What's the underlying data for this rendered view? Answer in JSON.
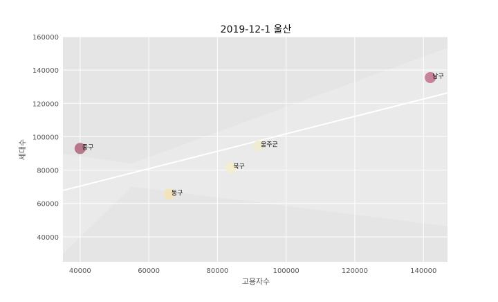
{
  "chart_data": {
    "type": "scatter",
    "title": "2019-12-1 울산",
    "xlabel": "고용자수",
    "ylabel": "세대수",
    "xlim": [
      35000,
      147000
    ],
    "ylim": [
      25000,
      160000
    ],
    "x_ticks": [
      40000,
      60000,
      80000,
      100000,
      120000,
      140000
    ],
    "y_ticks": [
      40000,
      60000,
      80000,
      100000,
      120000,
      140000,
      160000
    ],
    "grid": true,
    "points": [
      {
        "label": "중구",
        "x": 40000,
        "y": 93000,
        "color": "#b06b80"
      },
      {
        "label": "남구",
        "x": 142000,
        "y": 135500,
        "color": "#c07a8e"
      },
      {
        "label": "동구",
        "x": 66000,
        "y": 65500,
        "color": "#f3e2b8"
      },
      {
        "label": "북구",
        "x": 84000,
        "y": 81500,
        "color": "#f6edcc"
      },
      {
        "label": "울주군",
        "x": 92000,
        "y": 94500,
        "color": "#f1ecd2"
      }
    ],
    "regression": {
      "x": [
        35000,
        147000
      ],
      "y": [
        67800,
        126300
      ],
      "color": "#ffffff"
    },
    "colors": {
      "panel": "#e5e5e5",
      "grid": "#ffffff",
      "band": "#ebebeb"
    }
  }
}
